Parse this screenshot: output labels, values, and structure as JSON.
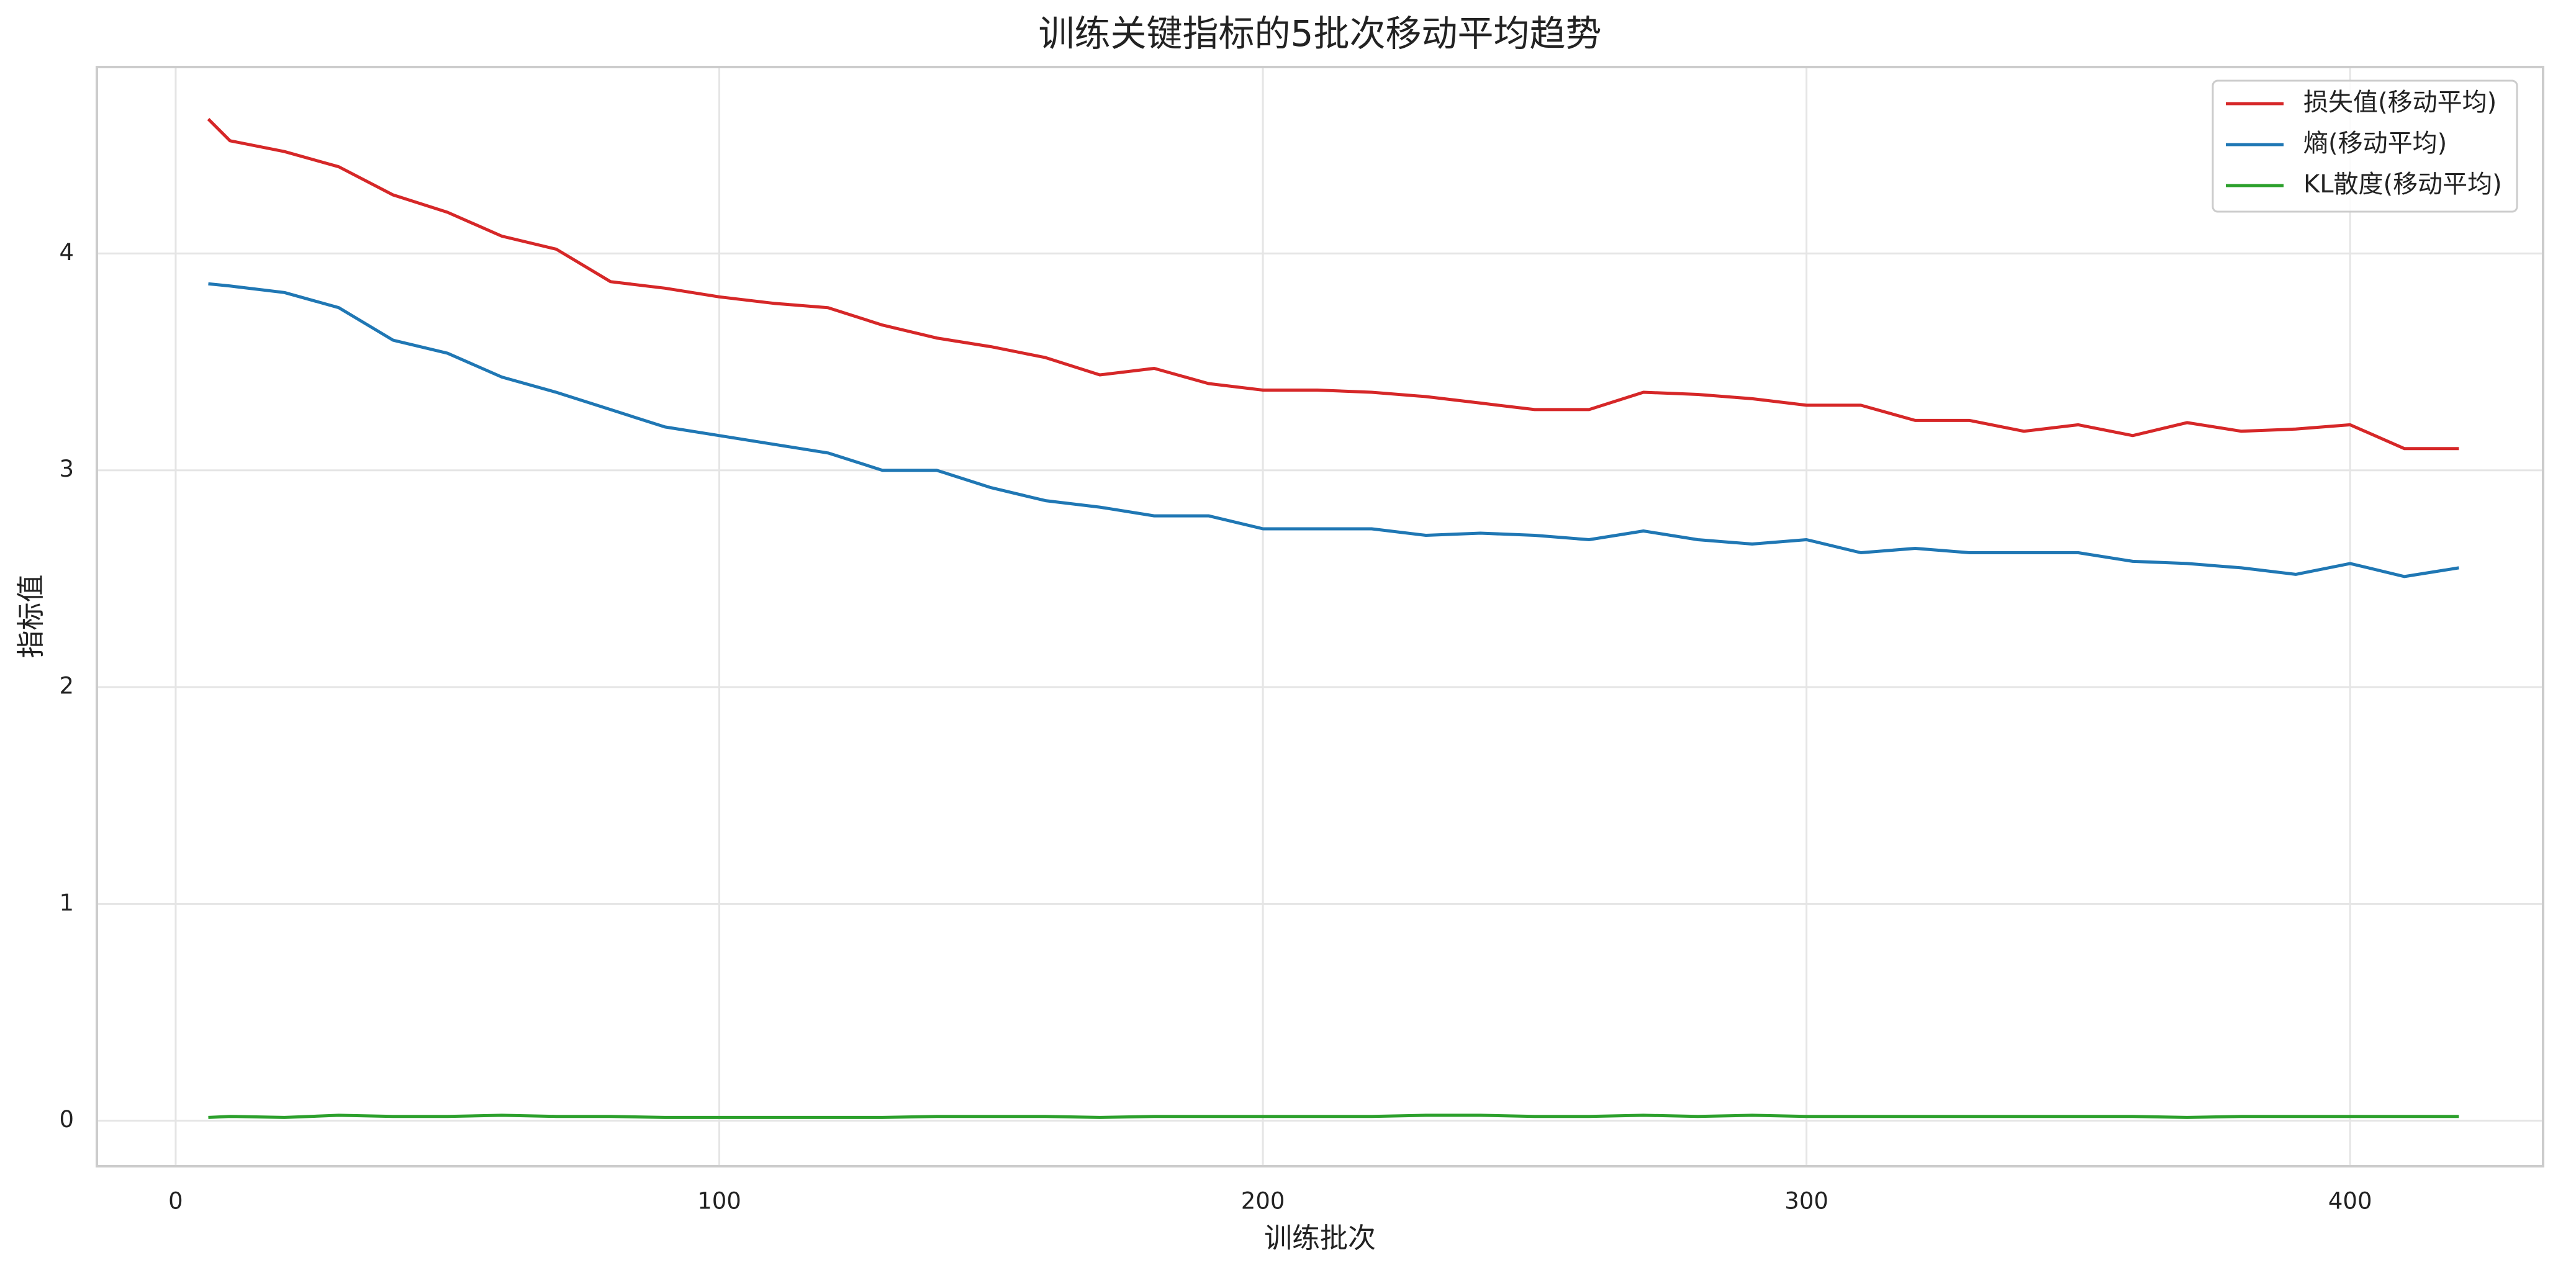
{
  "chart_data": {
    "type": "line",
    "title": "训练关键指标的5批次移动平均趋势",
    "x_label": "训练批次",
    "y_label": "指标值",
    "x": [
      6,
      10,
      20,
      30,
      40,
      50,
      60,
      70,
      80,
      90,
      100,
      110,
      120,
      130,
      140,
      150,
      160,
      170,
      180,
      190,
      200,
      210,
      220,
      230,
      240,
      250,
      260,
      270,
      280,
      290,
      300,
      310,
      320,
      330,
      340,
      350,
      360,
      370,
      380,
      390,
      400,
      410,
      420
    ],
    "series": [
      {
        "name": "损失值(移动平均)",
        "color": "#d62728",
        "values": [
          4.62,
          4.52,
          4.47,
          4.4,
          4.27,
          4.19,
          4.08,
          4.02,
          3.87,
          3.84,
          3.8,
          3.77,
          3.75,
          3.67,
          3.61,
          3.57,
          3.52,
          3.44,
          3.47,
          3.4,
          3.37,
          3.37,
          3.36,
          3.34,
          3.31,
          3.28,
          3.28,
          3.36,
          3.35,
          3.33,
          3.3,
          3.3,
          3.23,
          3.23,
          3.18,
          3.21,
          3.16,
          3.22,
          3.18,
          3.19,
          3.21,
          3.1,
          3.1
        ]
      },
      {
        "name": "熵(移动平均)",
        "color": "#1f77b4",
        "values": [
          3.86,
          3.85,
          3.82,
          3.75,
          3.6,
          3.54,
          3.43,
          3.36,
          3.28,
          3.2,
          3.16,
          3.12,
          3.08,
          3.0,
          3.0,
          2.92,
          2.86,
          2.83,
          2.79,
          2.79,
          2.73,
          2.73,
          2.73,
          2.7,
          2.71,
          2.7,
          2.68,
          2.72,
          2.68,
          2.66,
          2.68,
          2.62,
          2.64,
          2.62,
          2.62,
          2.62,
          2.58,
          2.57,
          2.55,
          2.52,
          2.57,
          2.51,
          2.55
        ]
      },
      {
        "name": "KL散度(移动平均)",
        "color": "#2ca02c",
        "values": [
          0.015,
          0.02,
          0.015,
          0.025,
          0.02,
          0.02,
          0.025,
          0.02,
          0.02,
          0.015,
          0.015,
          0.015,
          0.015,
          0.015,
          0.02,
          0.02,
          0.02,
          0.015,
          0.02,
          0.02,
          0.02,
          0.02,
          0.02,
          0.025,
          0.025,
          0.02,
          0.02,
          0.025,
          0.02,
          0.025,
          0.02,
          0.02,
          0.02,
          0.02,
          0.02,
          0.02,
          0.02,
          0.015,
          0.02,
          0.02,
          0.02,
          0.02,
          0.02
        ]
      }
    ],
    "xlim": [
      -14.5,
      435.5
    ],
    "xticks": [
      0,
      100,
      200,
      300,
      400
    ],
    "ylim": [
      -0.21,
      4.86
    ],
    "yticks": [
      0,
      1,
      2,
      3,
      4
    ],
    "grid": true,
    "legend": "upper right"
  }
}
